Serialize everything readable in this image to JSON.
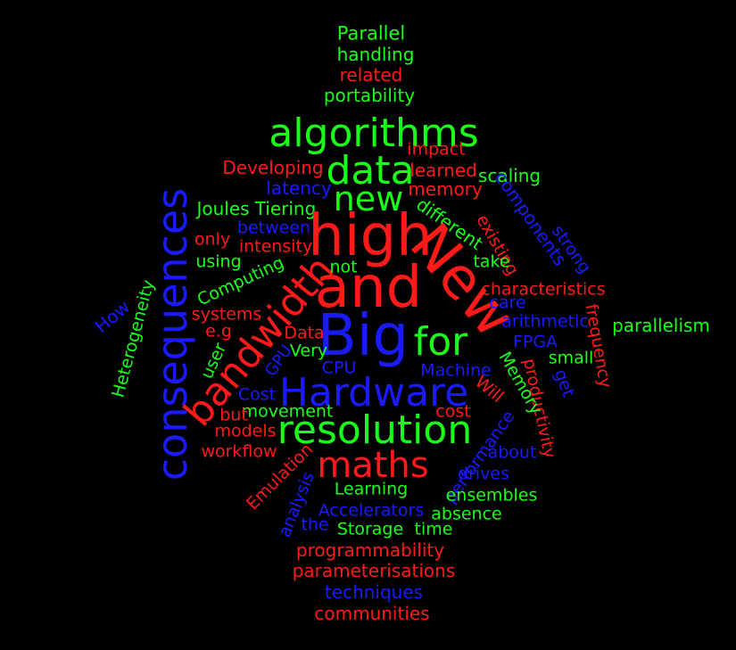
{
  "colors": {
    "background": "#000000",
    "red": "#ff1a1a",
    "green": "#1aff1a",
    "blue": "#1a1aff"
  },
  "words": [
    {
      "text": "Parallel",
      "color": "green"
    },
    {
      "text": "handling",
      "color": "green"
    },
    {
      "text": "related",
      "color": "red"
    },
    {
      "text": "portability",
      "color": "green"
    },
    {
      "text": "algorithms",
      "color": "green"
    },
    {
      "text": "impact",
      "color": "red"
    },
    {
      "text": "Developing",
      "color": "red"
    },
    {
      "text": "data",
      "color": "green"
    },
    {
      "text": "learned",
      "color": "red"
    },
    {
      "text": "scaling",
      "color": "green"
    },
    {
      "text": "latency",
      "color": "blue"
    },
    {
      "text": "new",
      "color": "green"
    },
    {
      "text": "memory",
      "color": "red"
    },
    {
      "text": "components",
      "color": "blue"
    },
    {
      "text": "Joules",
      "color": "green"
    },
    {
      "text": "Tiering",
      "color": "green"
    },
    {
      "text": "different",
      "color": "green"
    },
    {
      "text": "between",
      "color": "blue"
    },
    {
      "text": "high",
      "color": "red"
    },
    {
      "text": "existing",
      "color": "red"
    },
    {
      "text": "strong",
      "color": "blue"
    },
    {
      "text": "consequences",
      "color": "blue"
    },
    {
      "text": "only",
      "color": "red"
    },
    {
      "text": "intensity",
      "color": "red"
    },
    {
      "text": "using",
      "color": "green"
    },
    {
      "text": "take",
      "color": "green"
    },
    {
      "text": "New",
      "color": "red"
    },
    {
      "text": "Computing",
      "color": "green"
    },
    {
      "text": "bandwidth",
      "color": "red"
    },
    {
      "text": "not",
      "color": "green"
    },
    {
      "text": "and",
      "color": "red"
    },
    {
      "text": "characteristics",
      "color": "red"
    },
    {
      "text": "Heterogeneity",
      "color": "green"
    },
    {
      "text": "How",
      "color": "blue"
    },
    {
      "text": "care",
      "color": "blue"
    },
    {
      "text": "frequency",
      "color": "red"
    },
    {
      "text": "systems",
      "color": "red"
    },
    {
      "text": "arithmetic",
      "color": "blue"
    },
    {
      "text": "parallelism",
      "color": "green"
    },
    {
      "text": "e.g",
      "color": "red"
    },
    {
      "text": "Data",
      "color": "red"
    },
    {
      "text": "Big",
      "color": "blue"
    },
    {
      "text": "for",
      "color": "green"
    },
    {
      "text": "FPGA",
      "color": "blue"
    },
    {
      "text": "user",
      "color": "green"
    },
    {
      "text": "GPU",
      "color": "blue"
    },
    {
      "text": "Very",
      "color": "green"
    },
    {
      "text": "small",
      "color": "green"
    },
    {
      "text": "productivity",
      "color": "red"
    },
    {
      "text": "CPU",
      "color": "blue"
    },
    {
      "text": "Machine",
      "color": "blue"
    },
    {
      "text": "Memory",
      "color": "green"
    },
    {
      "text": "get",
      "color": "blue"
    },
    {
      "text": "Hardware",
      "color": "blue"
    },
    {
      "text": "Will",
      "color": "red"
    },
    {
      "text": "Cost",
      "color": "blue"
    },
    {
      "text": "movement",
      "color": "green"
    },
    {
      "text": "cost",
      "color": "red"
    },
    {
      "text": "but",
      "color": "red"
    },
    {
      "text": "resolution",
      "color": "green"
    },
    {
      "text": "models",
      "color": "red"
    },
    {
      "text": "performance",
      "color": "blue"
    },
    {
      "text": "workflow",
      "color": "red"
    },
    {
      "text": "about",
      "color": "blue"
    },
    {
      "text": "maths",
      "color": "red"
    },
    {
      "text": "drives",
      "color": "blue"
    },
    {
      "text": "Emulation",
      "color": "red"
    },
    {
      "text": "analysis",
      "color": "blue"
    },
    {
      "text": "Learning",
      "color": "green"
    },
    {
      "text": "ensembles",
      "color": "green"
    },
    {
      "text": "Accelerators",
      "color": "blue"
    },
    {
      "text": "absence",
      "color": "green"
    },
    {
      "text": "the",
      "color": "blue"
    },
    {
      "text": "Storage",
      "color": "green"
    },
    {
      "text": "time",
      "color": "green"
    },
    {
      "text": "programmability",
      "color": "red"
    },
    {
      "text": "parameterisations",
      "color": "red"
    },
    {
      "text": "techniques",
      "color": "blue"
    },
    {
      "text": "communities",
      "color": "red"
    }
  ]
}
